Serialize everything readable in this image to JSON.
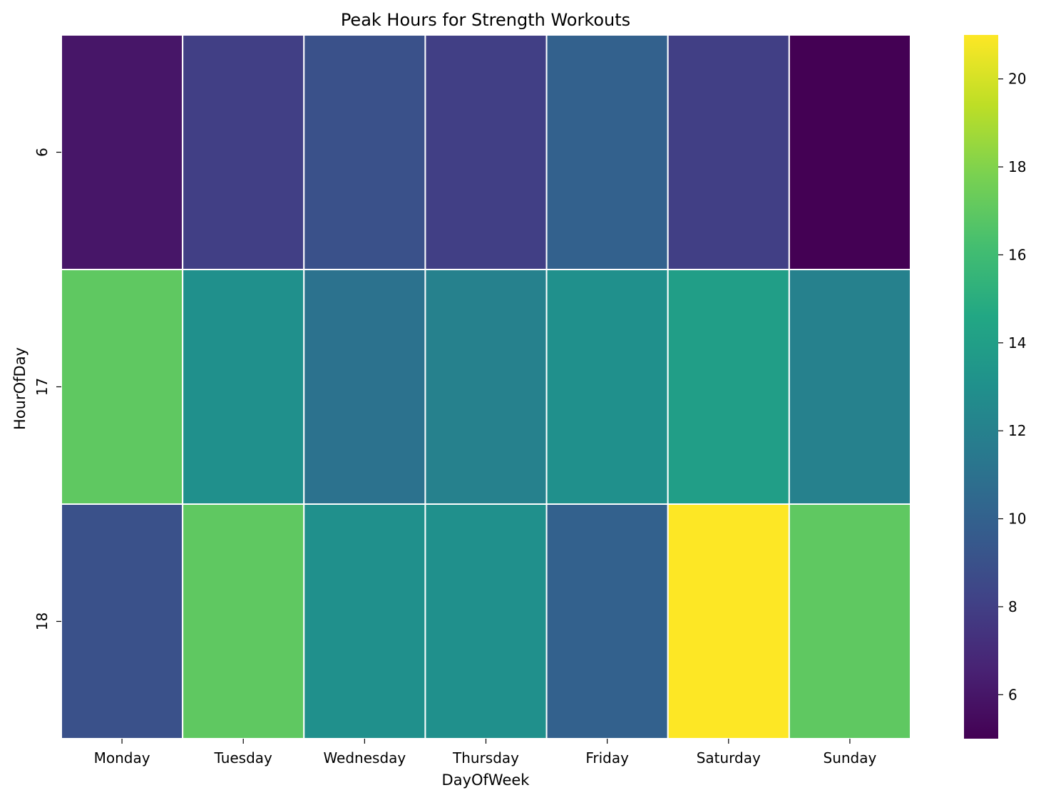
{
  "chart_data": {
    "type": "heatmap",
    "title": "Peak Hours for Strength Workouts",
    "xlabel": "DayOfWeek",
    "ylabel": "HourOfDay",
    "x_categories": [
      "Monday",
      "Tuesday",
      "Wednesday",
      "Thursday",
      "Friday",
      "Saturday",
      "Sunday"
    ],
    "y_categories": [
      "6",
      "17",
      "18"
    ],
    "values": [
      [
        6,
        8,
        9,
        8,
        10,
        8,
        5
      ],
      [
        17,
        13,
        11,
        12,
        13,
        14,
        12
      ],
      [
        9,
        17,
        13,
        13,
        10,
        21,
        17
      ]
    ],
    "colorbar": {
      "colormap": "viridis",
      "vmin": 5,
      "vmax": 21,
      "ticks": [
        6,
        8,
        10,
        12,
        14,
        16,
        18,
        20
      ]
    },
    "grid": false
  }
}
